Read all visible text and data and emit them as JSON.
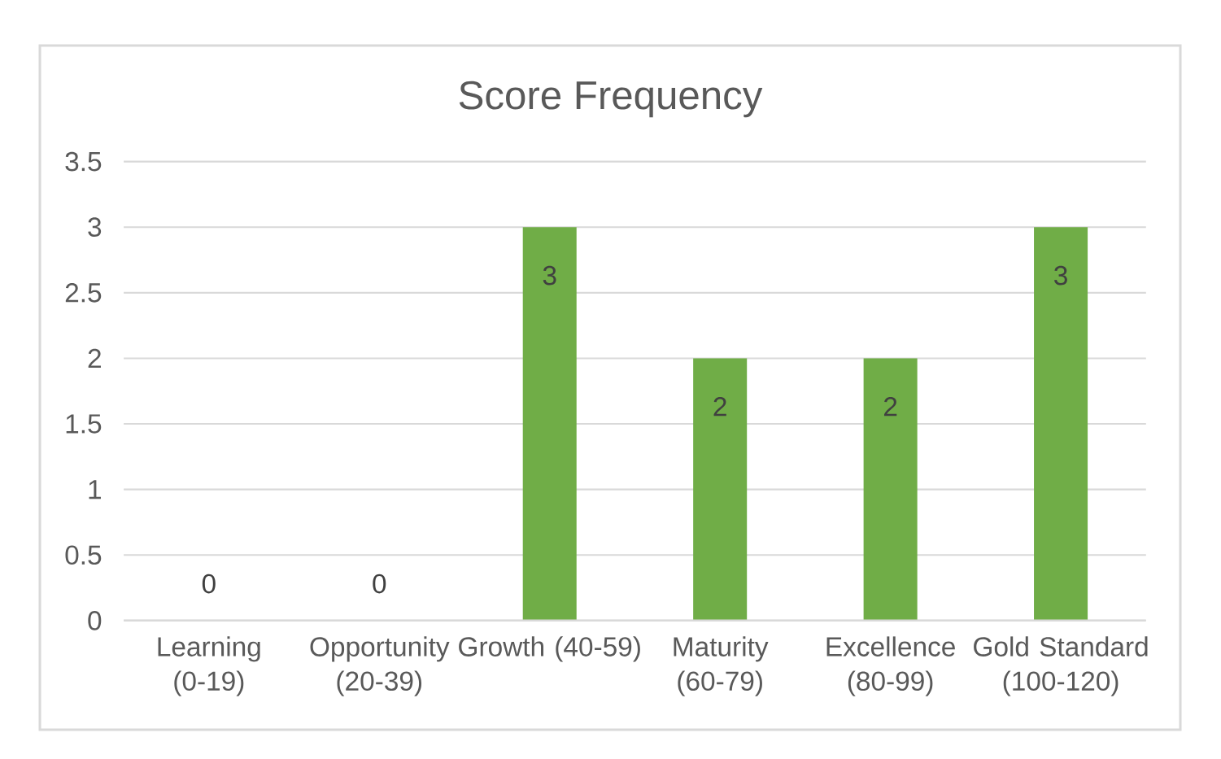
{
  "chart_data": {
    "type": "bar",
    "title": "Score Frequency",
    "categories": [
      "Learning (0-19)",
      "Opportunity (20-39)",
      "Growth (40-59)",
      "Maturity (60-79)",
      "Excellence (80-99)",
      "Gold Standard (100-120)"
    ],
    "values": [
      0,
      0,
      3,
      2,
      2,
      3
    ],
    "color": "#70ad47",
    "ylim": [
      0,
      3.5
    ],
    "yticks": [
      0,
      0.5,
      1,
      1.5,
      2,
      2.5,
      3,
      3.5
    ],
    "grid": "y",
    "data_labels": true
  }
}
